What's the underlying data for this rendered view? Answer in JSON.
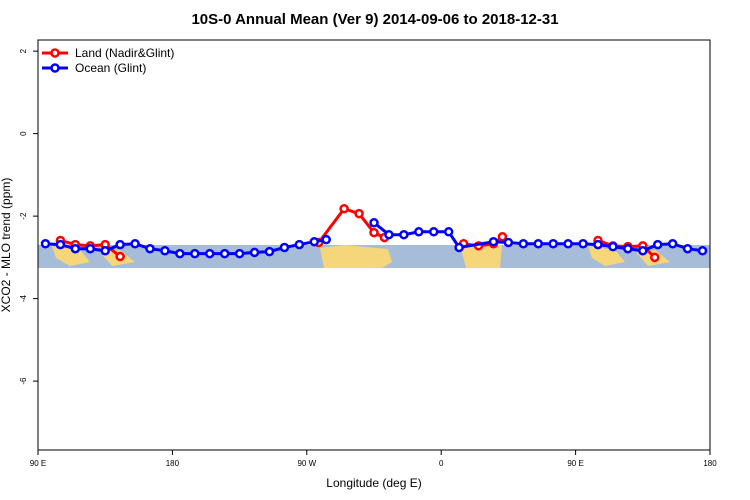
{
  "chart_data": {
    "type": "line",
    "title": "10S-0 Annual Mean (Ver 9)   2014-09-06 to 2018-12-31",
    "x_label": "Longitude (deg E)",
    "y_label": "XCO2 - MLO trend (ppm)",
    "xlim": [
      90,
      540
    ],
    "ylim": [
      -7.67,
      2.27
    ],
    "xticks": [
      {
        "value": 90,
        "label": "90 E"
      },
      180,
      {
        "value": 270,
        "label": "90 W"
      },
      {
        "value": 360,
        "label": "0"
      },
      {
        "value": 450,
        "label": "90 E"
      },
      {
        "value": 540,
        "label": "180"
      }
    ],
    "yticks": [
      2,
      0,
      -2,
      -4,
      -6
    ],
    "legend": "top-left",
    "series": [
      {
        "name": "Land (Nadir&Glint)",
        "color": "#ff0000",
        "x": [
          105,
          115,
          125,
          135,
          145,
          155,
          278,
          295,
          305,
          315,
          322,
          330,
          375,
          385,
          395,
          401,
          410,
          465,
          475,
          485,
          495,
          503
        ],
        "values": [
          -2.59,
          -2.69,
          -2.72,
          -2.69,
          -2.98,
          null,
          -2.64,
          -1.82,
          -1.94,
          -2.4,
          -2.52,
          null,
          -2.67,
          -2.72,
          -2.67,
          -2.5,
          null,
          -2.59,
          -2.72,
          -2.74,
          -2.72,
          -3.0
        ]
      },
      {
        "name": "Ocean (Glint)",
        "color": "#0000ff",
        "x": [
          95,
          105,
          115,
          125,
          135,
          145,
          155,
          165,
          175,
          185,
          195,
          205,
          215,
          225,
          235,
          245,
          255,
          265,
          275,
          283,
          300,
          315,
          325,
          335,
          345,
          355,
          365,
          372,
          395,
          405,
          415,
          425,
          435,
          445,
          455,
          465,
          475,
          485,
          495,
          505,
          515,
          525,
          535
        ],
        "values": [
          -2.67,
          -2.69,
          -2.79,
          -2.79,
          -2.84,
          -2.69,
          -2.67,
          -2.79,
          -2.84,
          -2.91,
          -2.91,
          -2.91,
          -2.91,
          -2.91,
          -2.88,
          -2.86,
          -2.76,
          -2.69,
          -2.62,
          -2.57,
          null,
          -2.16,
          -2.45,
          -2.45,
          -2.38,
          -2.38,
          -2.38,
          -2.76,
          -2.62,
          -2.64,
          -2.67,
          -2.67,
          -2.67,
          -2.67,
          -2.67,
          -2.69,
          -2.74,
          -2.79,
          -2.84,
          -2.69,
          -2.67,
          -2.79,
          -2.84
        ]
      }
    ]
  }
}
